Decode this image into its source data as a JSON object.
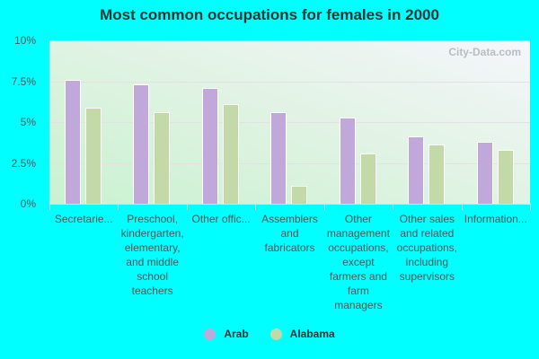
{
  "chart_data": {
    "type": "bar",
    "title": "Most common occupations for females in 2000",
    "xlabel": "",
    "ylabel": "",
    "ylim": [
      0,
      10
    ],
    "yticks": [
      "0%",
      "2.5%",
      "5%",
      "7.5%",
      "10%"
    ],
    "grid": true,
    "legend_position": "bottom",
    "categories": [
      "Secretarie...",
      "Preschool, kindergarten, elementary, and middle school teachers",
      "Other offic...",
      "Assemblers and fabricators",
      "Other management occupations, except farmers and farm managers",
      "Other sales and related occupations, including supervisors",
      "Information..."
    ],
    "series": [
      {
        "name": "Arab",
        "color": "#c0a9da",
        "values": [
          7.6,
          7.3,
          7.1,
          5.6,
          5.3,
          4.1,
          3.8
        ]
      },
      {
        "name": "Alabama",
        "color": "#c4d9a8",
        "values": [
          5.9,
          5.6,
          6.1,
          1.1,
          3.1,
          3.6,
          3.3
        ]
      }
    ],
    "watermark": "City-Data.com"
  },
  "category_labels": [
    [
      "Secretarie..."
    ],
    [
      "Preschool,",
      "kindergarten,",
      "elementary,",
      "and middle",
      "school",
      "teachers"
    ],
    [
      "Other offic..."
    ],
    [
      "Assemblers",
      "and",
      "fabricators"
    ],
    [
      "Other",
      "management",
      "occupations,",
      "except",
      "farmers and",
      "farm",
      "managers"
    ],
    [
      "Other sales",
      "and related",
      "occupations,",
      "including",
      "supervisors"
    ],
    [
      "Information..."
    ]
  ]
}
